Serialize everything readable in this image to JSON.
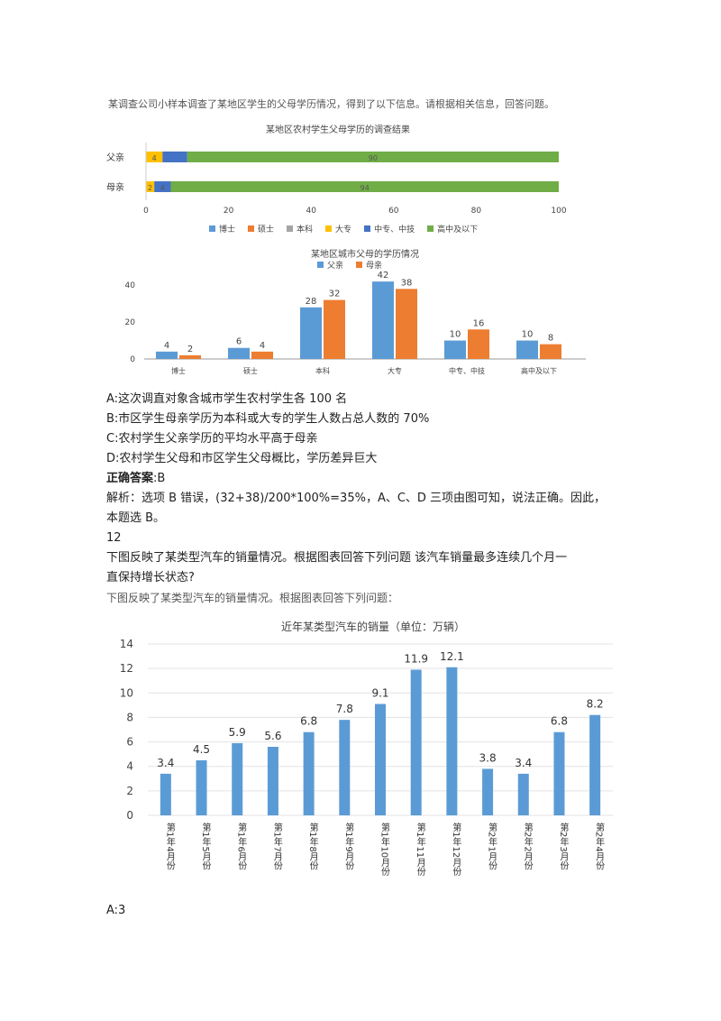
{
  "q11": {
    "intro": "某调查公司小样本调查了某地区学生的父母学历情况，得到了以下信息。请根据相关信息，回答问题。",
    "rural_chart_title": "某地区农村学生父母学历的调查结果",
    "rural_rows": [
      {
        "label": "父亲",
        "segments": [
          0,
          0,
          0,
          4,
          6,
          90
        ],
        "seg_labels": [
          "",
          "",
          "",
          "4",
          "",
          "90"
        ]
      },
      {
        "label": "母亲",
        "segments": [
          0,
          0,
          0,
          2,
          4,
          94
        ],
        "seg_labels": [
          "",
          "",
          "",
          "2",
          "4",
          "94"
        ]
      }
    ],
    "rural_xticks": [
      "0",
      "20",
      "40",
      "60",
      "80",
      "100"
    ],
    "legend": [
      "博士",
      "硕士",
      "本科",
      "大专",
      "中专、中技",
      "高中及以下"
    ],
    "legend_colors": [
      "#5b9bd5",
      "#ed7d31",
      "#a5a5a5",
      "#ffc000",
      "#4472c4",
      "#70ad47"
    ],
    "urban_chart_title": "某地区城市父母的学历情况",
    "urban_legend": [
      "父亲",
      "母亲"
    ],
    "urban_colors": [
      "#5b9bd5",
      "#ed7d31"
    ],
    "urban_categories": [
      "博士",
      "硕士",
      "本科",
      "大专",
      "中专、中技",
      "高中及以下"
    ],
    "urban_yticks": [
      "0",
      "20",
      "40"
    ],
    "options": [
      "A:这次调直对象含城市学生农村学生各 100 名",
      "B:市区学生母亲学历为本科或大专的学生人数占总人数的 70%",
      "C:农村学生父亲学历的平均水平高于母亲",
      "D:农村学生父母和市区学生父母概比，学历差异巨大"
    ],
    "answer_label": "正确答案",
    "answer_value": ":B",
    "analysis_1": "解析：选项 B 错误，(32+38)/200*100%=35%，A、C、D 三项由图可知，说法正确。因此，",
    "analysis_2": "本题选 B。"
  },
  "q12": {
    "number": "12",
    "text_1": "下图反映了某类型汽车的销量情况。根据图表回答下列问题  该汽车销量最多连续几个月一",
    "text_2": "直保持增长状态?",
    "image_caption": "下图反映了某类型汽车的销量情况。根据图表回答下列问题：",
    "chart_title": "近年某类型汽车的销量（单位：万辆）",
    "yticks": [
      "0",
      "2",
      "4",
      "6",
      "8",
      "10",
      "12",
      "14"
    ],
    "option_a": "A:3"
  },
  "chart_data": [
    {
      "type": "bar",
      "orientation": "horizontal-stacked",
      "title": "某地区农村学生父母学历的调查结果",
      "categories": [
        "父亲",
        "母亲"
      ],
      "series": [
        {
          "name": "博士",
          "values": [
            0,
            0
          ]
        },
        {
          "name": "硕士",
          "values": [
            0,
            0
          ]
        },
        {
          "name": "本科",
          "values": [
            0,
            0
          ]
        },
        {
          "name": "大专",
          "values": [
            4,
            2
          ]
        },
        {
          "name": "中专、中技",
          "values": [
            6,
            4
          ]
        },
        {
          "name": "高中及以下",
          "values": [
            90,
            94
          ]
        }
      ],
      "xlim": [
        0,
        100
      ],
      "legend": "bottom"
    },
    {
      "type": "bar",
      "title": "某地区城市父母的学历情况",
      "categories": [
        "博士",
        "硕士",
        "本科",
        "大专",
        "中专、中技",
        "高中及以下"
      ],
      "series": [
        {
          "name": "父亲",
          "values": [
            4,
            6,
            28,
            42,
            10,
            10
          ]
        },
        {
          "name": "母亲",
          "values": [
            2,
            4,
            32,
            38,
            16,
            8
          ]
        }
      ],
      "ylim": [
        0,
        45
      ],
      "legend": "top"
    },
    {
      "type": "bar",
      "title": "近年某类型汽车的销量（单位：万辆）",
      "categories": [
        "第1年4月份",
        "第1年5月份",
        "第1年6月份",
        "第1年7月份",
        "第1年8月份",
        "第1年9月份",
        "第1年10月份",
        "第1年11月份",
        "第1年12月份",
        "第2年1月份",
        "第2年2月份",
        "第2年3月份",
        "第2年4月份"
      ],
      "values": [
        3.4,
        4.5,
        5.9,
        5.6,
        6.8,
        7.8,
        9.1,
        11.9,
        12.1,
        3.8,
        3.4,
        6.8,
        8.2
      ],
      "ylim": [
        0,
        14
      ],
      "color": "#5b9bd5",
      "grid": true
    }
  ]
}
